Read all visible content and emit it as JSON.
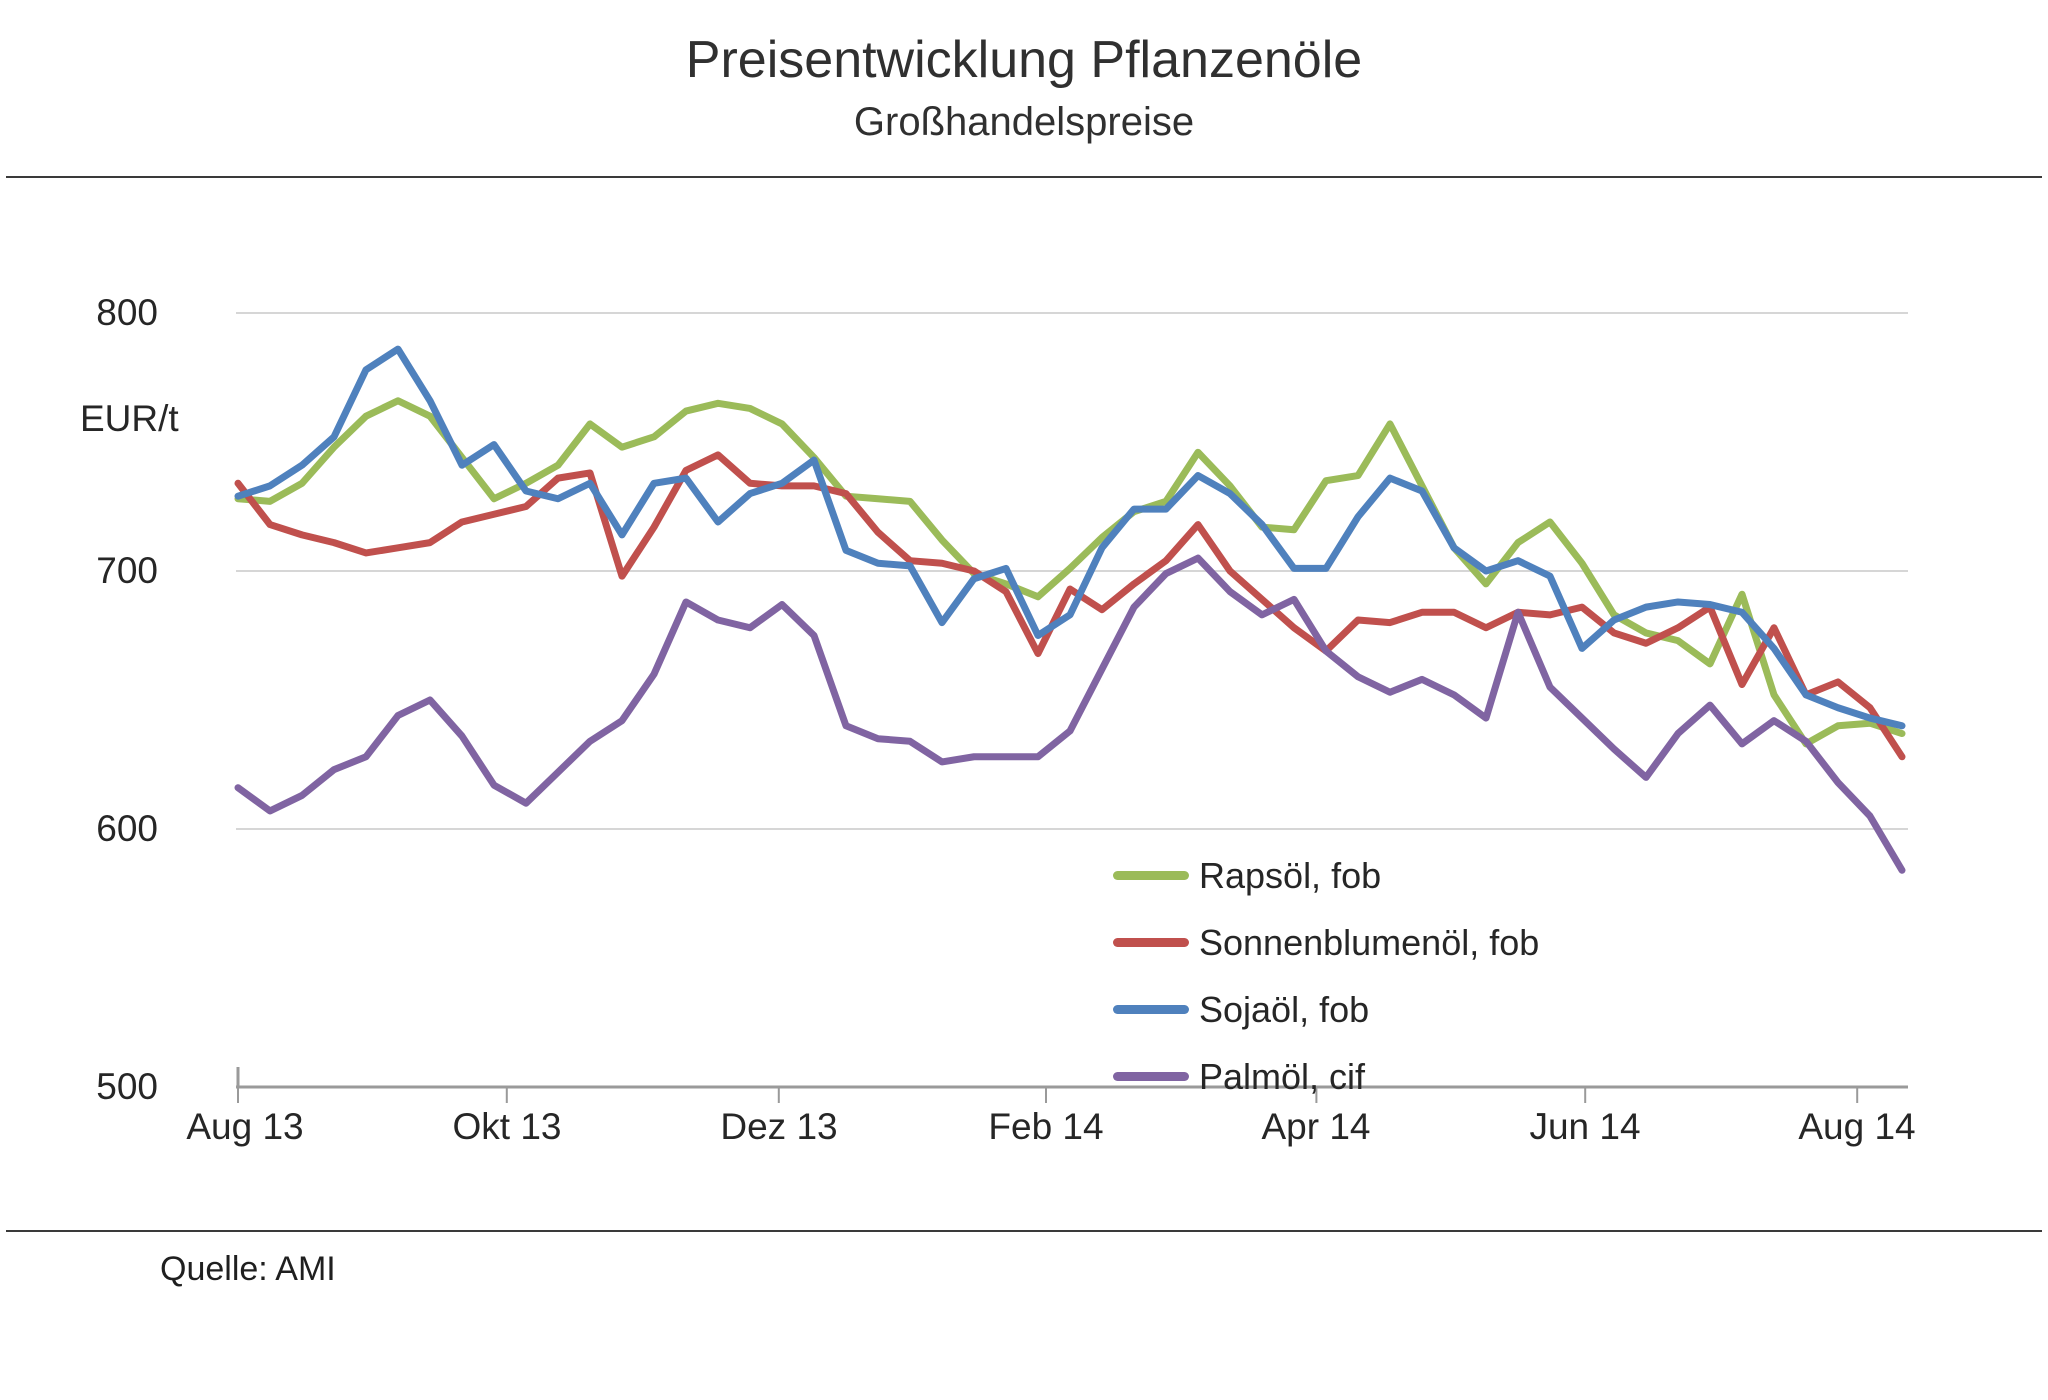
{
  "header": {
    "title": "Preisentwicklung Pflanzenöle",
    "subtitle": "Großhandelspreise"
  },
  "source": "Quelle: AMI",
  "y_axis": {
    "unit_label": "EUR/t",
    "ticks": [
      "800",
      "700",
      "600",
      "500"
    ],
    "min": 500,
    "max": 800
  },
  "x_axis": {
    "tick_labels": [
      "Aug 13",
      "Okt 13",
      "Dez 13",
      "Feb 14",
      "Apr 14",
      "Jun 14",
      "Aug 14"
    ],
    "tick_week_positions": [
      0,
      8.4,
      16.9,
      25.25,
      33.7,
      42.1,
      50.6
    ]
  },
  "chart_data": {
    "type": "line",
    "x_unit": "week (Aug 2013 - Aug 2014)",
    "ylabel": "EUR/t",
    "ylim": [
      500,
      800
    ],
    "grid": "horizontal, at 600/700/800",
    "legend_position": "inside lower middle-right",
    "gridline_values": [
      800,
      700,
      600
    ],
    "colors": {
      "grid": "#d6d6d6",
      "axis": "#9a9a9a",
      "text": "#262626"
    },
    "series": [
      {
        "name": "Rapsöl, fob",
        "color": "#9bbb59",
        "values": [
          728,
          727,
          734,
          748,
          760,
          766,
          760,
          744,
          728,
          734,
          741,
          757,
          748,
          752,
          762,
          765,
          763,
          757,
          744,
          729,
          728,
          727,
          712,
          699,
          695,
          690,
          701,
          713,
          723,
          727,
          746,
          733,
          717,
          716,
          735,
          737,
          757,
          733,
          709,
          695,
          711,
          719,
          703,
          683,
          676,
          673,
          664,
          691,
          652,
          633,
          640,
          641,
          637
        ]
      },
      {
        "name": "Sonnenblumenöl, fob",
        "color": "#c0504d",
        "values": [
          734,
          718,
          714,
          711,
          707,
          709,
          711,
          719,
          722,
          725,
          736,
          738,
          698,
          717,
          739,
          745,
          734,
          733,
          733,
          730,
          715,
          704,
          703,
          700,
          692,
          668,
          693,
          685,
          695,
          704,
          718,
          700,
          689,
          678,
          669,
          681,
          680,
          684,
          684,
          678,
          684,
          683,
          686,
          676,
          672,
          678,
          686,
          656,
          678,
          652,
          657,
          647,
          628
        ]
      },
      {
        "name": "Sojaöl, fob",
        "color": "#4f81bd",
        "values": [
          729,
          733,
          741,
          752,
          778,
          786,
          766,
          741,
          749,
          731,
          728,
          734,
          714,
          734,
          736,
          719,
          730,
          734,
          743,
          708,
          703,
          702,
          680,
          697,
          701,
          675,
          683,
          709,
          724,
          724,
          737,
          730,
          718,
          701,
          701,
          721,
          736,
          731,
          709,
          700,
          704,
          698,
          670,
          681,
          686,
          688,
          687,
          684,
          670,
          652,
          647,
          643,
          640
        ]
      },
      {
        "name": "Palmöl, cif",
        "color": "#8064a2",
        "values": [
          616,
          607,
          613,
          623,
          628,
          644,
          650,
          636,
          617,
          610,
          622,
          634,
          642,
          660,
          688,
          681,
          678,
          687,
          675,
          640,
          635,
          634,
          626,
          628,
          628,
          628,
          638,
          662,
          686,
          699,
          705,
          692,
          683,
          689,
          669,
          659,
          653,
          658,
          652,
          643,
          684,
          655,
          643,
          631,
          620,
          637,
          648,
          633,
          642,
          634,
          618,
          605,
          584
        ]
      }
    ]
  }
}
